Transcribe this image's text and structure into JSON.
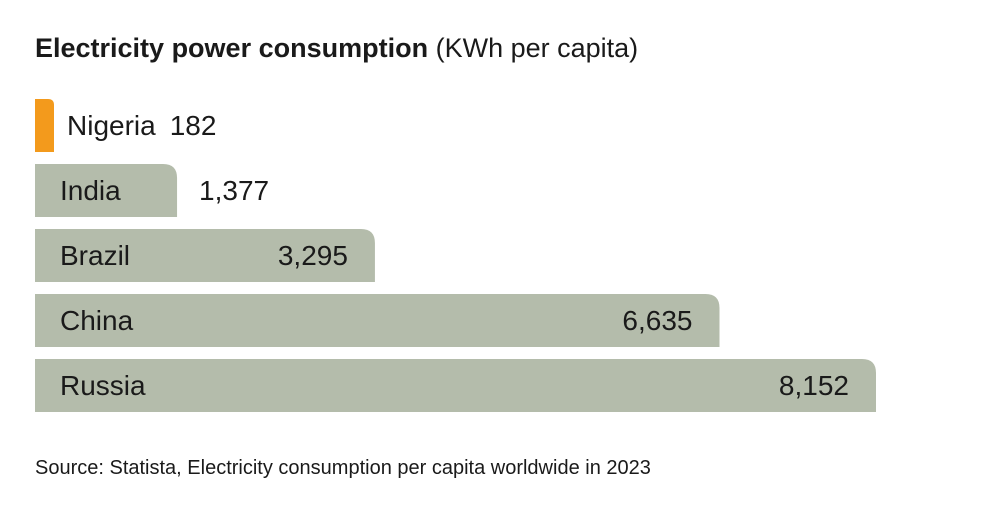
{
  "chart_data": {
    "type": "bar",
    "orientation": "horizontal",
    "title": "Electricity power consumption",
    "subtitle": "(KWh per capita)",
    "categories": [
      "Nigeria",
      "India",
      "Brazil",
      "China",
      "Russia"
    ],
    "values": [
      182,
      1377,
      3295,
      6635,
      8152
    ],
    "value_labels": [
      "182",
      "1,377",
      "3,295",
      "6,635",
      "8,152"
    ],
    "unit": "KWh per capita",
    "xlim": [
      0,
      8152
    ],
    "grid": false,
    "legend": "none"
  },
  "colors": {
    "highlight": "#f39a1c",
    "bar": "#b4bcab",
    "text": "#1a1a1a"
  },
  "highlight_category": "Nigeria",
  "source": "Source: Statista, Electricity consumption per capita worldwide in 2023"
}
